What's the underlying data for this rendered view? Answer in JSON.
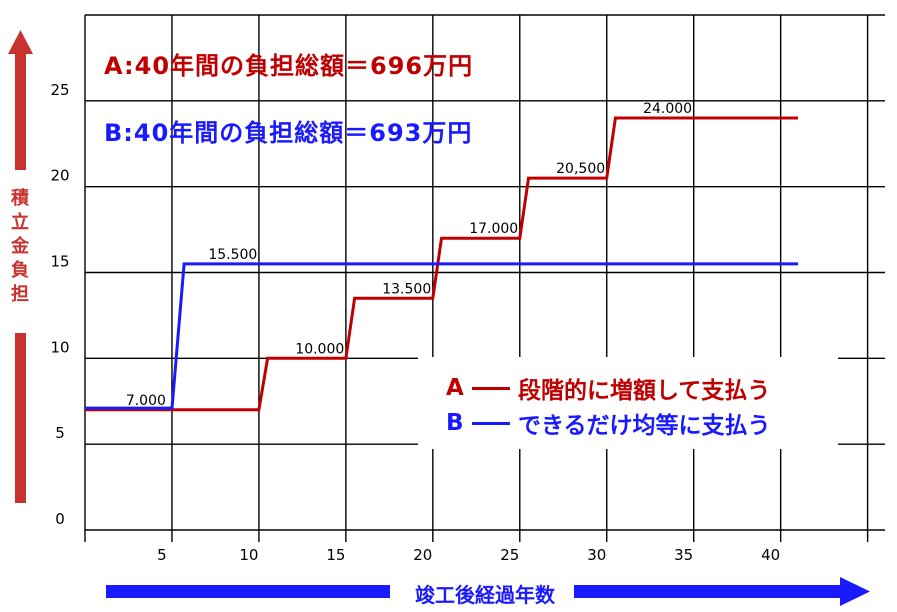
{
  "chart_data": {
    "type": "line",
    "title_lines": [
      "A:40年間の負担総額＝696万円",
      "B:40年間の負担総額＝693万円"
    ],
    "xlabel": "竣工後経過年数",
    "ylabel": "積立金負担",
    "xlim": [
      0,
      46
    ],
    "ylim": [
      0,
      30
    ],
    "x_ticks": [
      5,
      10,
      15,
      20,
      25,
      30,
      35,
      40
    ],
    "y_ticks": [
      0,
      5,
      10,
      15,
      20,
      25
    ],
    "grid": true,
    "legend_position": "lower-right",
    "legend": [
      {
        "key": "A",
        "text": "段階的に増額して支払う",
        "color": "#c00000"
      },
      {
        "key": "B",
        "text": "できるだけ均等に支払う",
        "color": "#1a1aff"
      }
    ],
    "series": [
      {
        "name": "A",
        "color": "#c00000",
        "points": [
          [
            0,
            7
          ],
          [
            10,
            7
          ],
          [
            10.5,
            10
          ],
          [
            15,
            10
          ],
          [
            15.5,
            13.5
          ],
          [
            20,
            13.5
          ],
          [
            20.5,
            17
          ],
          [
            25,
            17
          ],
          [
            25.5,
            20.5
          ],
          [
            30,
            20.5
          ],
          [
            30.5,
            24
          ],
          [
            41,
            24
          ]
        ]
      },
      {
        "name": "B",
        "color": "#1a1aff",
        "points": [
          [
            0,
            7.1
          ],
          [
            5,
            7.1
          ],
          [
            5.7,
            15.5
          ],
          [
            41,
            15.5
          ]
        ]
      }
    ],
    "data_labels": [
      {
        "x": 3.5,
        "y": 7.0,
        "text": "7.000"
      },
      {
        "x": 8.5,
        "y": 15.5,
        "text": "15.500"
      },
      {
        "x": 13.5,
        "y": 10.0,
        "text": "10.000"
      },
      {
        "x": 18.5,
        "y": 13.5,
        "text": "13.500"
      },
      {
        "x": 23.5,
        "y": 17.0,
        "text": "17.000"
      },
      {
        "x": 28.5,
        "y": 20.5,
        "text": "20,500"
      },
      {
        "x": 33.5,
        "y": 24.0,
        "text": "24.000"
      }
    ]
  }
}
